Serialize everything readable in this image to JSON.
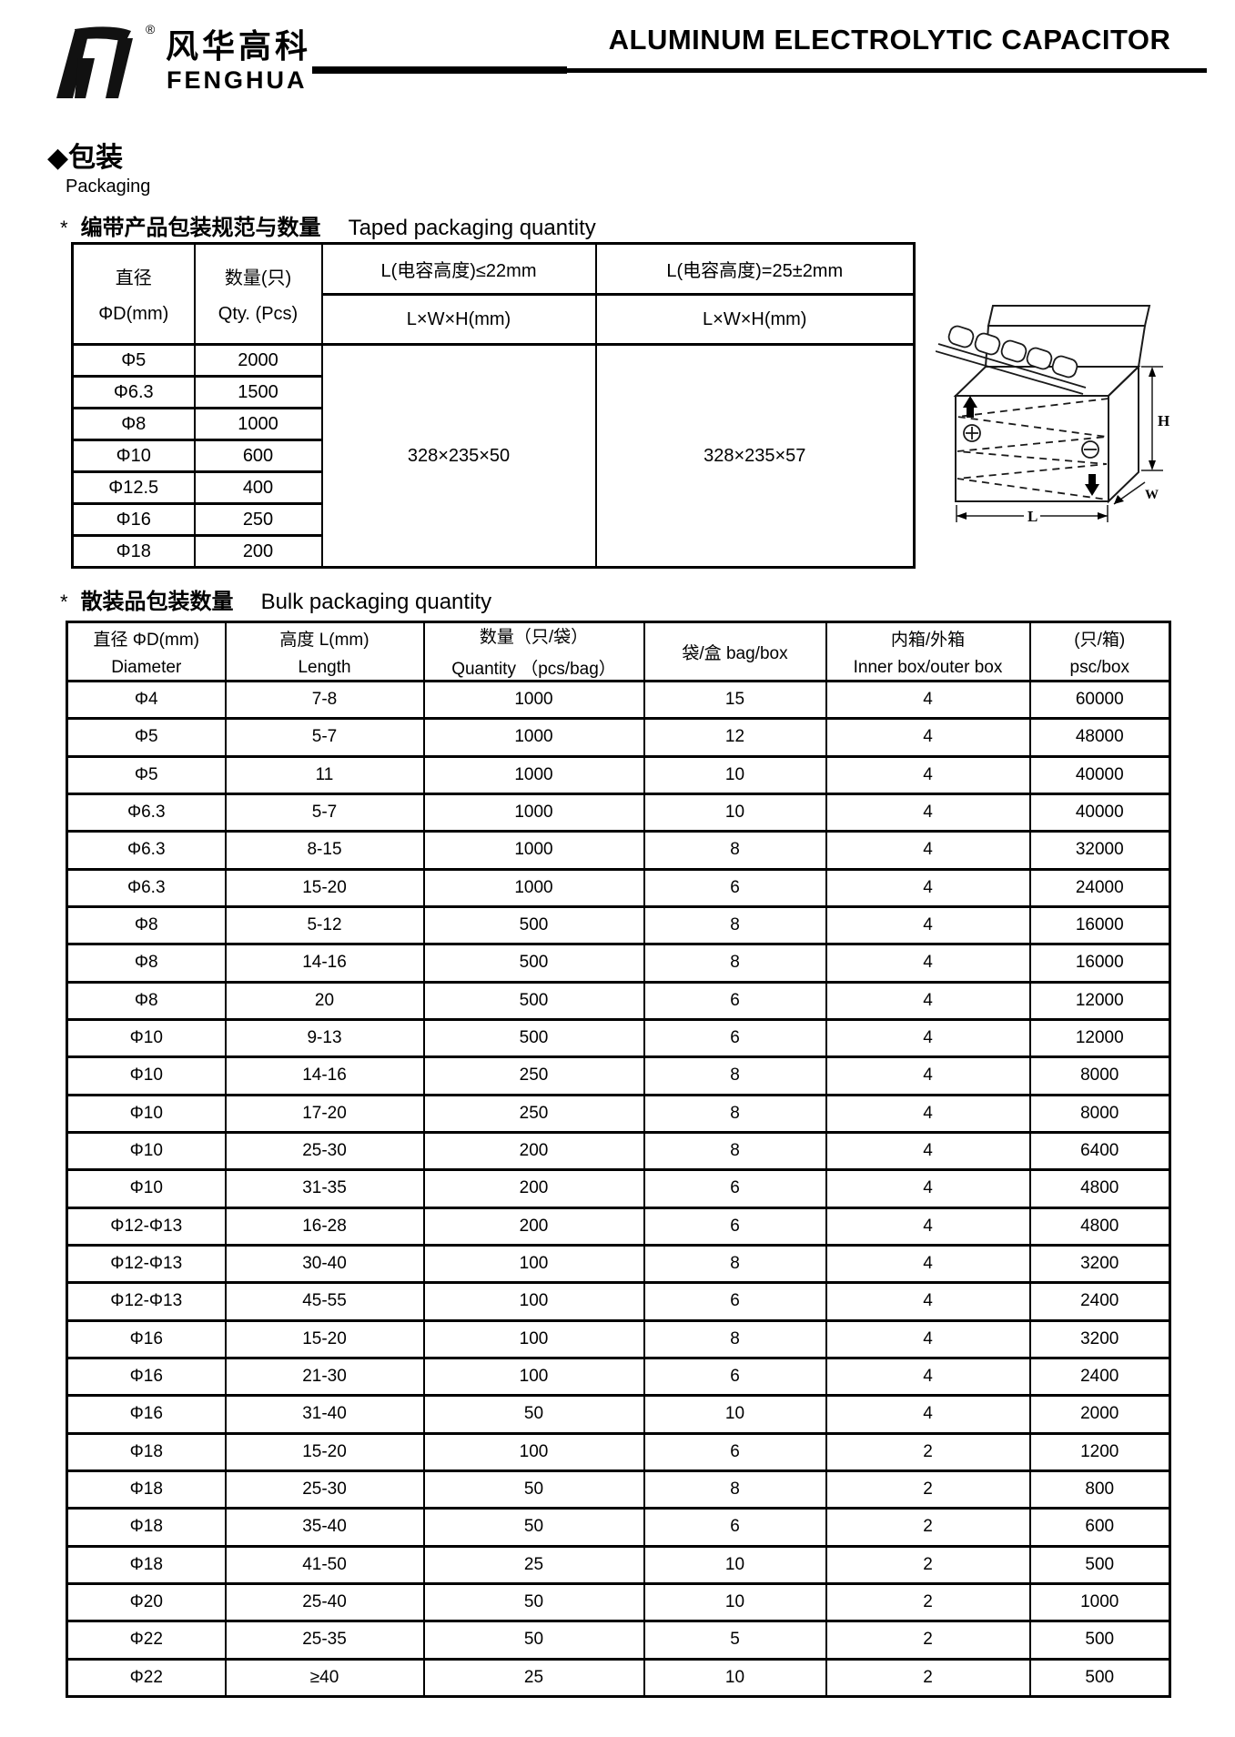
{
  "header": {
    "brand_cn": "风华高科",
    "brand_en": "FENGHUA",
    "registered_mark": "®",
    "title": "ALUMINUM ELECTROLYTIC CAPACITOR"
  },
  "section": {
    "marker": "◆",
    "heading_cn": "包装",
    "heading_en": "Packaging"
  },
  "taped": {
    "star": "*",
    "caption_cn": "编带产品包装规范与数量",
    "caption_en": "Taped packaging quantity",
    "col1_line1": "直径",
    "col1_line2": "ΦD(mm)",
    "col2_line1": "数量(只)",
    "col2_line2": "Qty. (Pcs)",
    "col3_header": "L(电容高度)≤22mm",
    "col4_header": "L(电容高度)=25±2mm",
    "sub_header": "L×W×H(mm)",
    "col3_value": "328×235×50",
    "col4_value": "328×235×57",
    "rows": [
      [
        "Φ5",
        "2000"
      ],
      [
        "Φ6.3",
        "1500"
      ],
      [
        "Φ8",
        "1000"
      ],
      [
        "Φ10",
        "600"
      ],
      [
        "Φ12.5",
        "400"
      ],
      [
        "Φ16",
        "250"
      ],
      [
        "Φ18",
        "200"
      ]
    ]
  },
  "diagram": {
    "label_h": "H",
    "label_w": "W",
    "label_l": "L"
  },
  "bulk": {
    "star": "*",
    "caption_cn": "散装品包装数量",
    "caption_en": "Bulk packaging quantity",
    "headers": [
      {
        "line1": "直径 ΦD(mm)",
        "line2": "Diameter"
      },
      {
        "line1": "高度 L(mm)",
        "line2": "Length"
      },
      {
        "line1": "数量（只/袋）",
        "line2": "Quantity （pcs/bag）"
      },
      {
        "line1": "袋/盒 bag/box",
        "line2": ""
      },
      {
        "line1": "内箱/外箱",
        "line2": "Inner box/outer box"
      },
      {
        "line1": "(只/箱)",
        "line2": "psc/box"
      }
    ],
    "rows": [
      [
        "Φ4",
        "7-8",
        "1000",
        "15",
        "4",
        "60000"
      ],
      [
        "Φ5",
        "5-7",
        "1000",
        "12",
        "4",
        "48000"
      ],
      [
        "Φ5",
        "11",
        "1000",
        "10",
        "4",
        "40000"
      ],
      [
        "Φ6.3",
        "5-7",
        "1000",
        "10",
        "4",
        "40000"
      ],
      [
        "Φ6.3",
        "8-15",
        "1000",
        "8",
        "4",
        "32000"
      ],
      [
        "Φ6.3",
        "15-20",
        "1000",
        "6",
        "4",
        "24000"
      ],
      [
        "Φ8",
        "5-12",
        "500",
        "8",
        "4",
        "16000"
      ],
      [
        "Φ8",
        "14-16",
        "500",
        "8",
        "4",
        "16000"
      ],
      [
        "Φ8",
        "20",
        "500",
        "6",
        "4",
        "12000"
      ],
      [
        "Φ10",
        "9-13",
        "500",
        "6",
        "4",
        "12000"
      ],
      [
        "Φ10",
        "14-16",
        "250",
        "8",
        "4",
        "8000"
      ],
      [
        "Φ10",
        "17-20",
        "250",
        "8",
        "4",
        "8000"
      ],
      [
        "Φ10",
        "25-30",
        "200",
        "8",
        "4",
        "6400"
      ],
      [
        "Φ10",
        "31-35",
        "200",
        "6",
        "4",
        "4800"
      ],
      [
        "Φ12-Φ13",
        "16-28",
        "200",
        "6",
        "4",
        "4800"
      ],
      [
        "Φ12-Φ13",
        "30-40",
        "100",
        "8",
        "4",
        "3200"
      ],
      [
        "Φ12-Φ13",
        "45-55",
        "100",
        "6",
        "4",
        "2400"
      ],
      [
        "Φ16",
        "15-20",
        "100",
        "8",
        "4",
        "3200"
      ],
      [
        "Φ16",
        "21-30",
        "100",
        "6",
        "4",
        "2400"
      ],
      [
        "Φ16",
        "31-40",
        "50",
        "10",
        "4",
        "2000"
      ],
      [
        "Φ18",
        "15-20",
        "100",
        "6",
        "2",
        "1200"
      ],
      [
        "Φ18",
        "25-30",
        "50",
        "8",
        "2",
        "800"
      ],
      [
        "Φ18",
        "35-40",
        "50",
        "6",
        "2",
        "600"
      ],
      [
        "Φ18",
        "41-50",
        "25",
        "10",
        "2",
        "500"
      ],
      [
        "Φ20",
        "25-40",
        "50",
        "10",
        "2",
        "1000"
      ],
      [
        "Φ22",
        "25-35",
        "50",
        "5",
        "2",
        "500"
      ],
      [
        "Φ22",
        "≥40",
        "25",
        "10",
        "2",
        "500"
      ]
    ]
  }
}
